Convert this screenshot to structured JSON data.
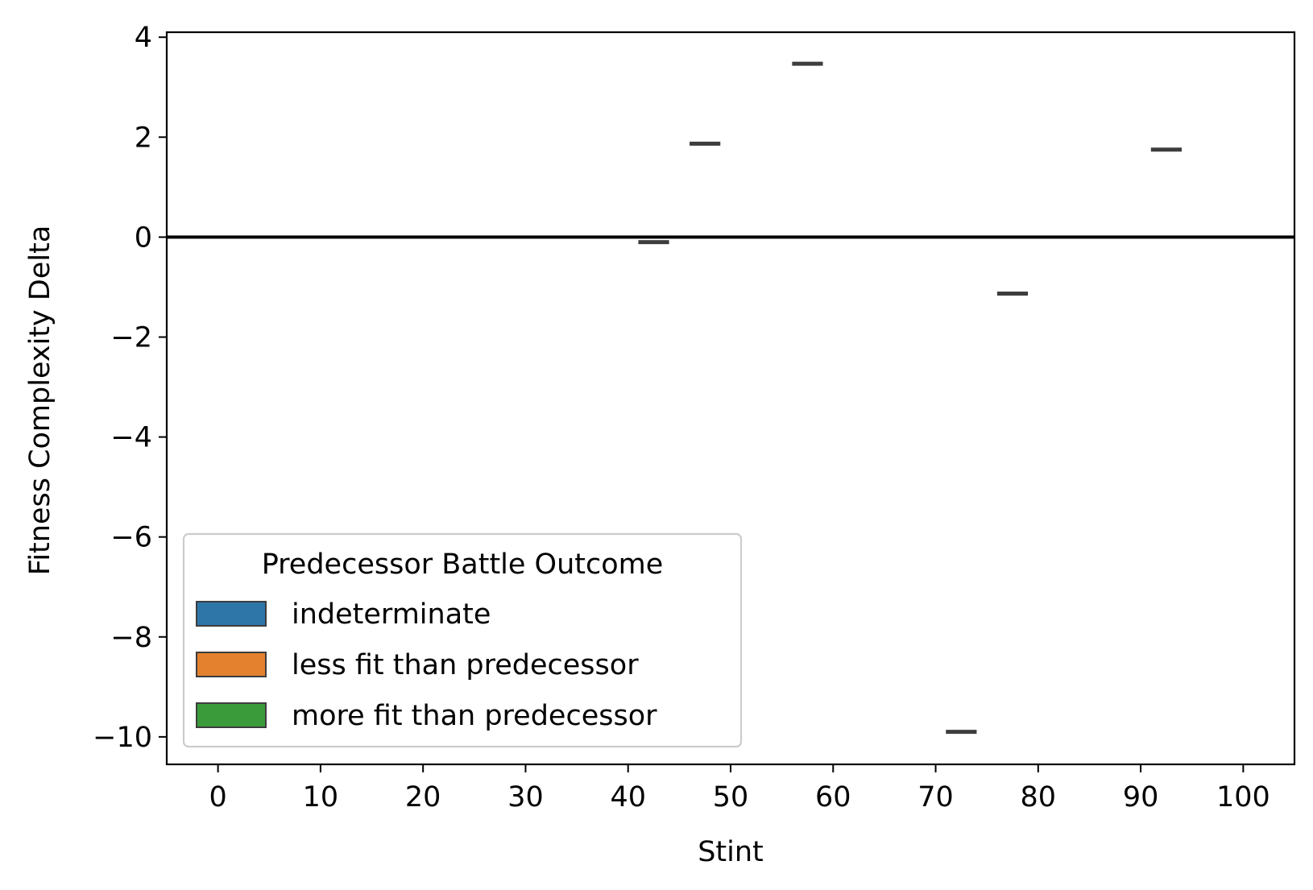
{
  "chart_data": {
    "type": "box",
    "title": "",
    "xlabel": "Stint",
    "ylabel": "Fitness Complexity Delta",
    "xlim": [
      -5,
      105
    ],
    "ylim": [
      -10.55,
      4.1
    ],
    "xticks": [
      0,
      10,
      20,
      30,
      40,
      50,
      60,
      70,
      80,
      90,
      100
    ],
    "xtick_labels": [
      "0",
      "10",
      "20",
      "30",
      "40",
      "50",
      "60",
      "70",
      "80",
      "90",
      "100"
    ],
    "yticks": [
      4,
      2,
      0,
      -2,
      -4,
      -6,
      -8,
      -10
    ],
    "ytick_labels": [
      "4",
      "2",
      "0",
      "−2",
      "−4",
      "−6",
      "−8",
      "−10"
    ],
    "reference_line": {
      "y": 0
    },
    "grid": false,
    "legend": {
      "title": "Predecessor Battle Outcome",
      "placement": "lower-left",
      "entries": [
        {
          "label": "indeterminate",
          "color": "#2e75a8"
        },
        {
          "label": "less fit than predecessor",
          "color": "#e3812e"
        },
        {
          "label": "more fit than predecessor",
          "color": "#3a9b3a"
        }
      ]
    },
    "median_color": "#3d3d3d",
    "series": [
      {
        "points": [
          {
            "x": 42.5,
            "y": -0.1
          },
          {
            "x": 47.5,
            "y": 1.87
          },
          {
            "x": 57.5,
            "y": 3.47
          },
          {
            "x": 72.5,
            "y": -9.9
          },
          {
            "x": 77.5,
            "y": -1.13
          },
          {
            "x": 92.5,
            "y": 1.75
          }
        ]
      }
    ]
  }
}
